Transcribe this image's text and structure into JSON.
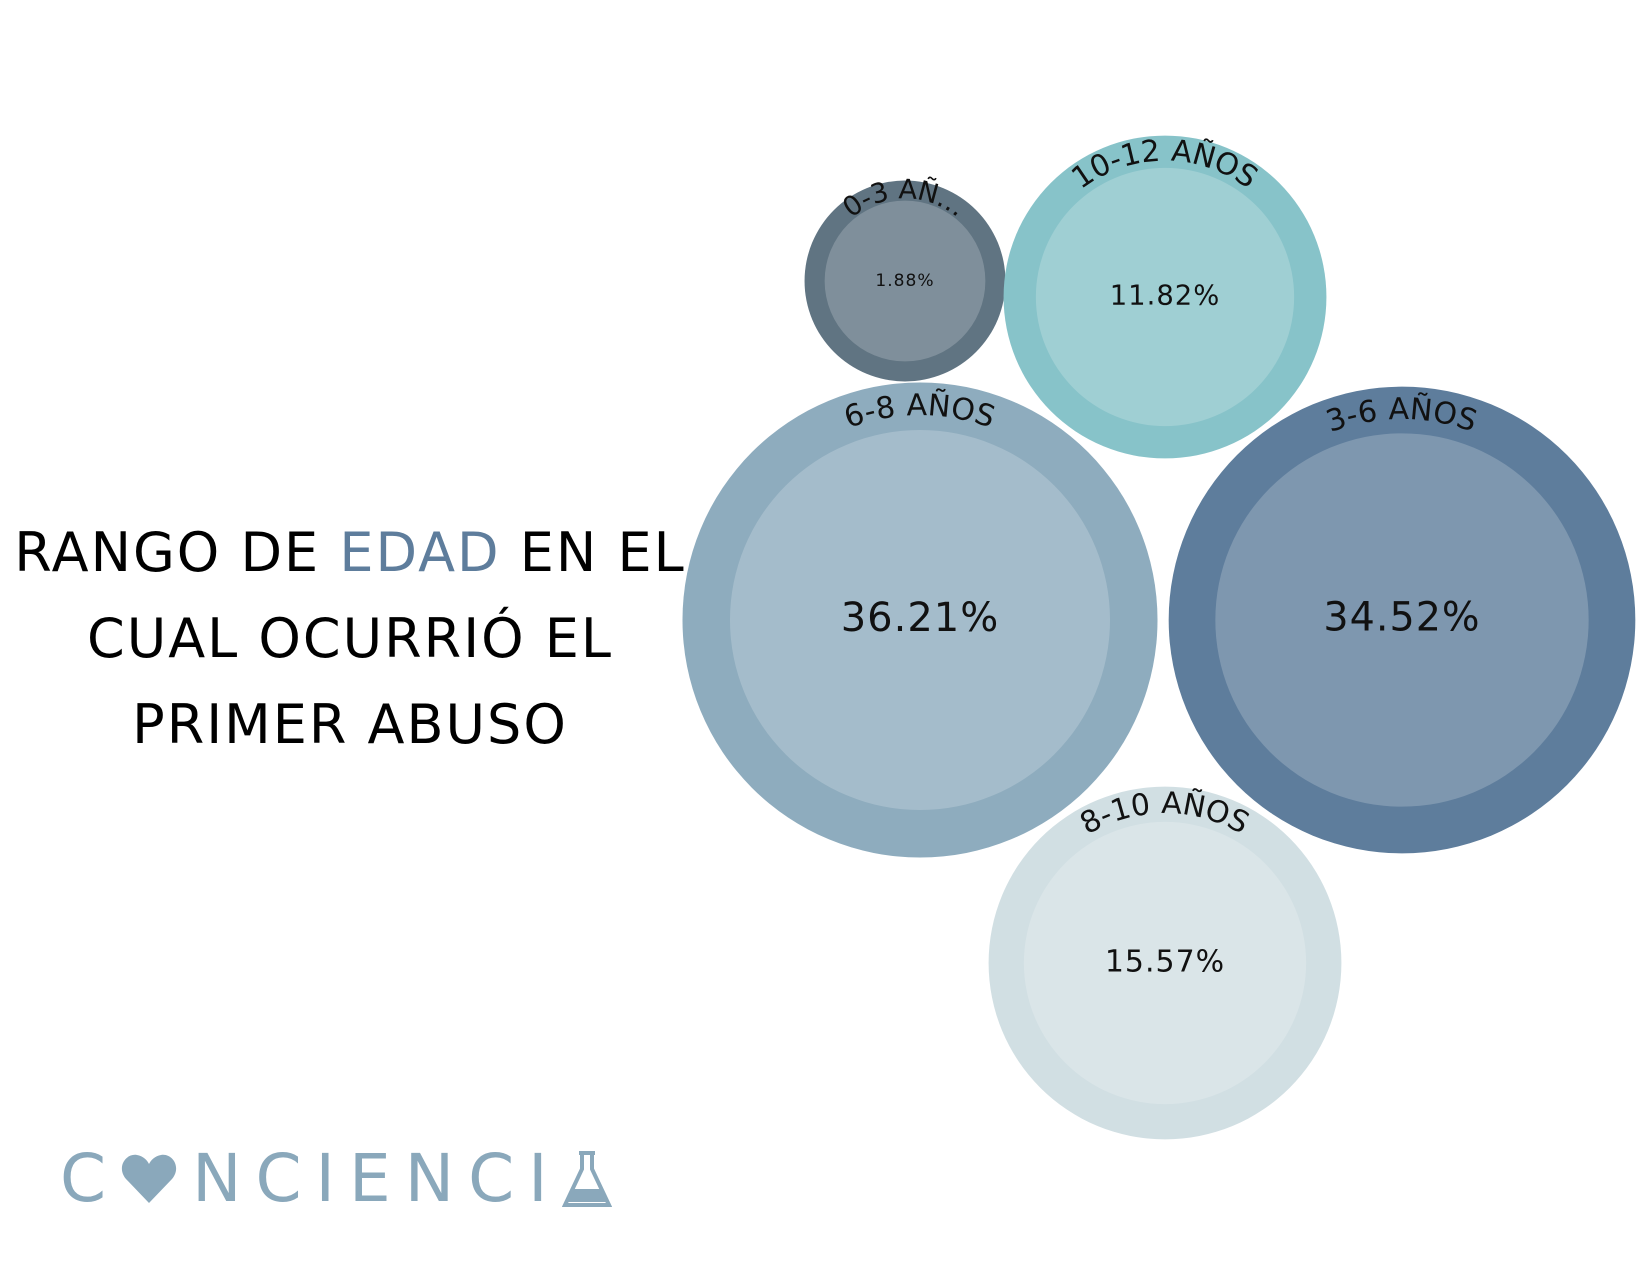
{
  "chart_data": {
    "type": "bubble",
    "title_lines": [
      [
        "RANGO DE ",
        "EDAD",
        " EN EL"
      ],
      [
        "CUAL OCURRIÓ EL"
      ],
      [
        "PRIMER ABUSO"
      ]
    ],
    "categories": [
      "0-3 AÑ...",
      "10-12 AÑOS",
      "6-8 AÑOS",
      "3-6 AÑOS",
      "8-10 AÑOS"
    ],
    "values": [
      1.88,
      11.82,
      36.21,
      34.52,
      15.57
    ],
    "value_labels": [
      "1.88%",
      "11.82%",
      "36.21%",
      "34.52%",
      "15.57%"
    ],
    "colors": [
      "#607482",
      "#87c3c9",
      "#8eacbe",
      "#5e7d9c",
      "#d1dfe3"
    ]
  },
  "logo": [
    "C",
    "NCIENCI"
  ]
}
